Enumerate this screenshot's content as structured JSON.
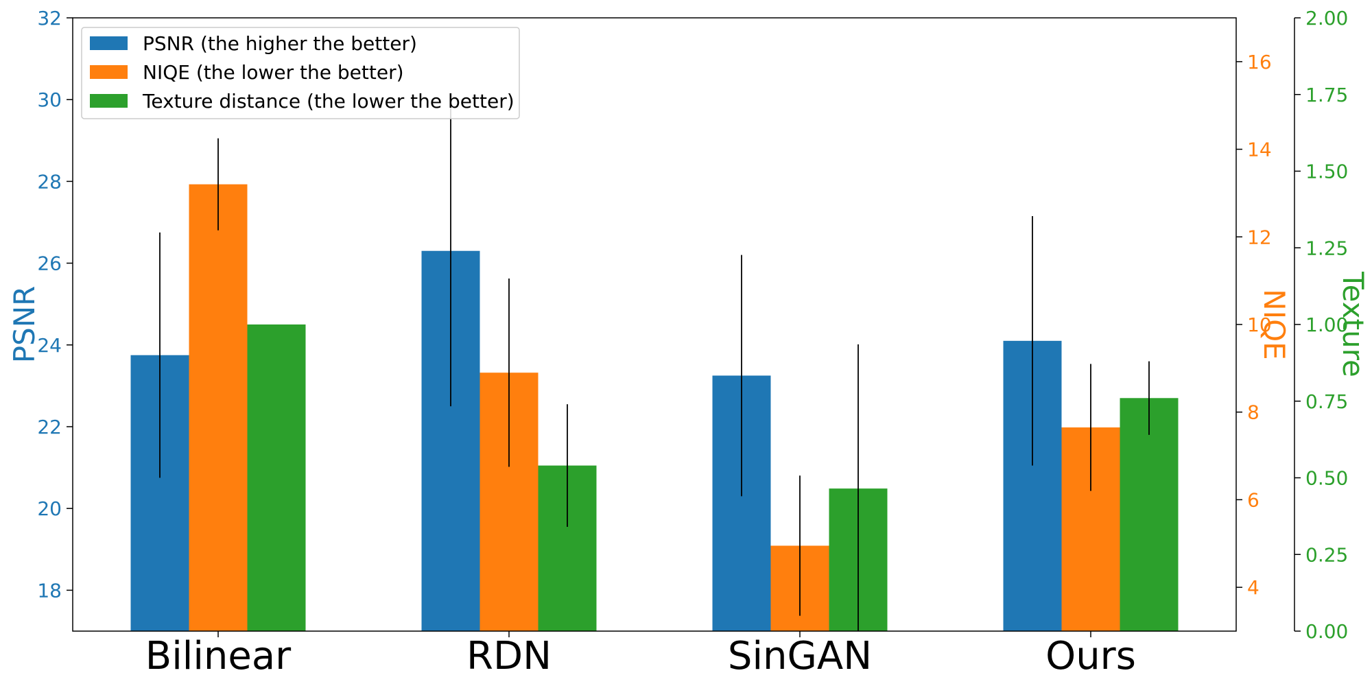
{
  "chart_data": {
    "type": "bar",
    "categories": [
      "Bilinear",
      "RDN",
      "SinGAN",
      "Ours"
    ],
    "series": [
      {
        "name": "PSNR (the higher the better)",
        "axis": "PSNR",
        "color": "#1f77b4",
        "values": [
          23.75,
          26.3,
          23.25,
          24.1
        ],
        "errors": [
          3.0,
          3.8,
          2.95,
          3.05
        ]
      },
      {
        "name": "NIQE (the lower the better)",
        "axis": "NIQE",
        "color": "#ff7f0e",
        "values": [
          13.2,
          8.9,
          4.95,
          7.65
        ],
        "errors": [
          1.05,
          2.15,
          1.6,
          1.45
        ]
      },
      {
        "name": "Texture distance (the lower the better)",
        "axis": "Texture",
        "color": "#2ca02c",
        "values": [
          1.0,
          0.54,
          0.465,
          0.76
        ],
        "errors": [
          0.0,
          0.2,
          0.47,
          0.12
        ]
      }
    ],
    "axes": {
      "left": {
        "label": "PSNR",
        "color": "#1f77b4",
        "ylim": [
          17,
          32
        ],
        "ticks": [
          18,
          20,
          22,
          24,
          26,
          28,
          30,
          32
        ],
        "tick_labels": [
          "18",
          "20",
          "22",
          "24",
          "26",
          "28",
          "30",
          "32"
        ]
      },
      "right1": {
        "label": "NIQE",
        "color": "#ff7f0e",
        "ylim": [
          3,
          17
        ],
        "ticks": [
          4,
          6,
          8,
          10,
          12,
          14,
          16
        ],
        "tick_labels": [
          "4",
          "6",
          "8",
          "10",
          "12",
          "14",
          "16"
        ]
      },
      "right2": {
        "label": "Texture",
        "color": "#2ca02c",
        "ylim": [
          0,
          2
        ],
        "ticks": [
          0,
          0.25,
          0.5,
          0.75,
          1.0,
          1.25,
          1.5,
          1.75,
          2.0
        ],
        "tick_labels": [
          "0.00",
          "0.25",
          "0.50",
          "0.75",
          "1.00",
          "1.25",
          "1.50",
          "1.75",
          "2.00"
        ]
      }
    },
    "legend_position": "top-left"
  }
}
